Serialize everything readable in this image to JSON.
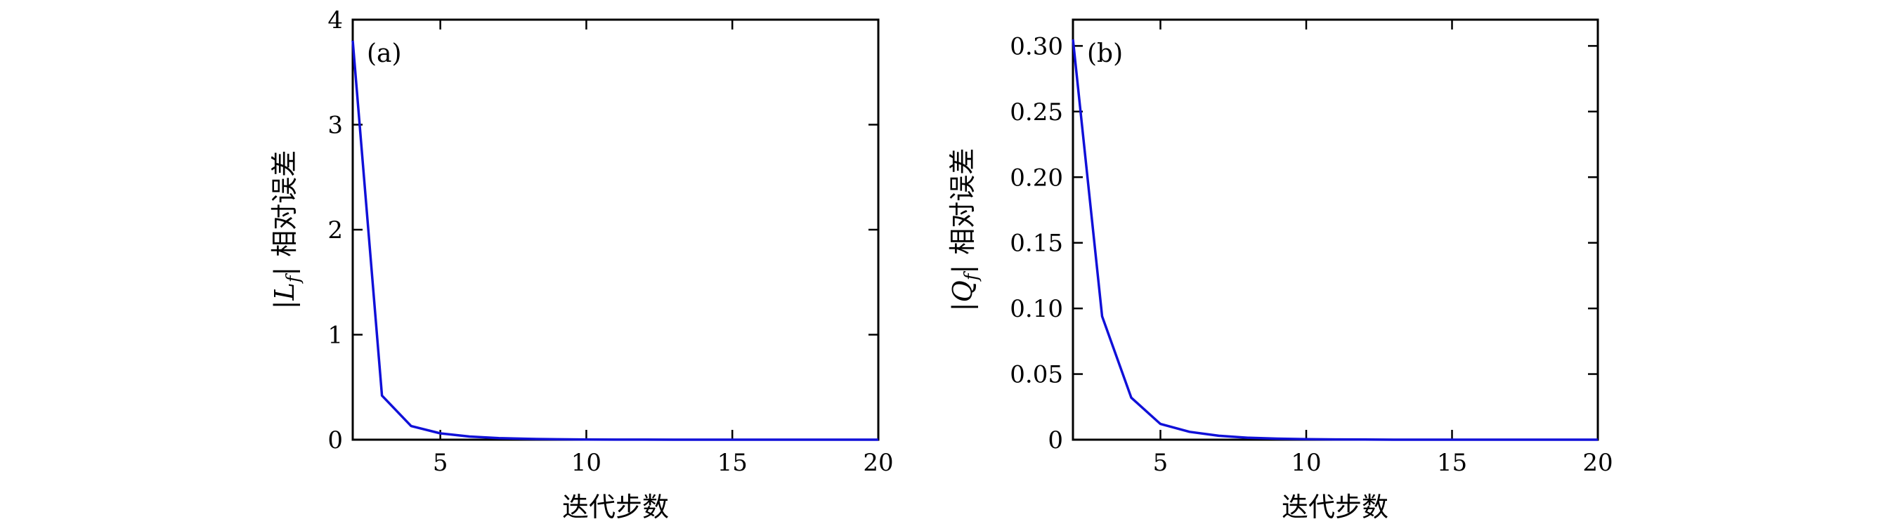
{
  "chart_data": [
    {
      "type": "line",
      "panel_label": "(a)",
      "xlabel": "迭代步数",
      "ylabel": "|Lf| 相对误差",
      "ylabel_parts": {
        "open": "|",
        "var": "L",
        "sub": "f",
        "close": "|",
        "text": "相对误差"
      },
      "xlim": [
        2,
        20
      ],
      "ylim": [
        0,
        4
      ],
      "xticks": [
        5,
        10,
        15,
        20
      ],
      "yticks": [
        0,
        1,
        2,
        3,
        4
      ],
      "ytick_labels": [
        "0",
        "1",
        "2",
        "3",
        "4"
      ],
      "grid": false,
      "line_color": "#1010d8",
      "x": [
        2,
        3,
        4,
        5,
        6,
        7,
        8,
        9,
        10,
        11,
        12,
        13,
        14,
        15,
        16,
        17,
        18,
        19,
        20
      ],
      "values": [
        3.8,
        0.42,
        0.13,
        0.06,
        0.03,
        0.015,
        0.008,
        0.004,
        0.002,
        0.001,
        0.0005,
        0.0003,
        0.0002,
        0.0001,
        0,
        0,
        0,
        0,
        0
      ]
    },
    {
      "type": "line",
      "panel_label": "(b)",
      "xlabel": "迭代步数",
      "ylabel": "|Qf| 相对误差",
      "ylabel_parts": {
        "open": "|",
        "var": "Q",
        "sub": "f",
        "close": "|",
        "text": "相对误差"
      },
      "xlim": [
        2,
        20
      ],
      "ylim": [
        0,
        0.32
      ],
      "xticks": [
        5,
        10,
        15,
        20
      ],
      "yticks": [
        0,
        0.05,
        0.1,
        0.15,
        0.2,
        0.25,
        0.3
      ],
      "ytick_labels": [
        "0",
        "0.05",
        "0.10",
        "0.15",
        "0.20",
        "0.25",
        "0.30"
      ],
      "grid": false,
      "line_color": "#1010d8",
      "x": [
        2,
        3,
        4,
        5,
        6,
        7,
        8,
        9,
        10,
        11,
        12,
        13,
        14,
        15,
        16,
        17,
        18,
        19,
        20
      ],
      "values": [
        0.305,
        0.094,
        0.032,
        0.012,
        0.006,
        0.003,
        0.0015,
        0.0008,
        0.0004,
        0.0002,
        0.0001,
        0,
        0,
        0,
        0,
        0,
        0,
        0,
        0
      ]
    }
  ]
}
